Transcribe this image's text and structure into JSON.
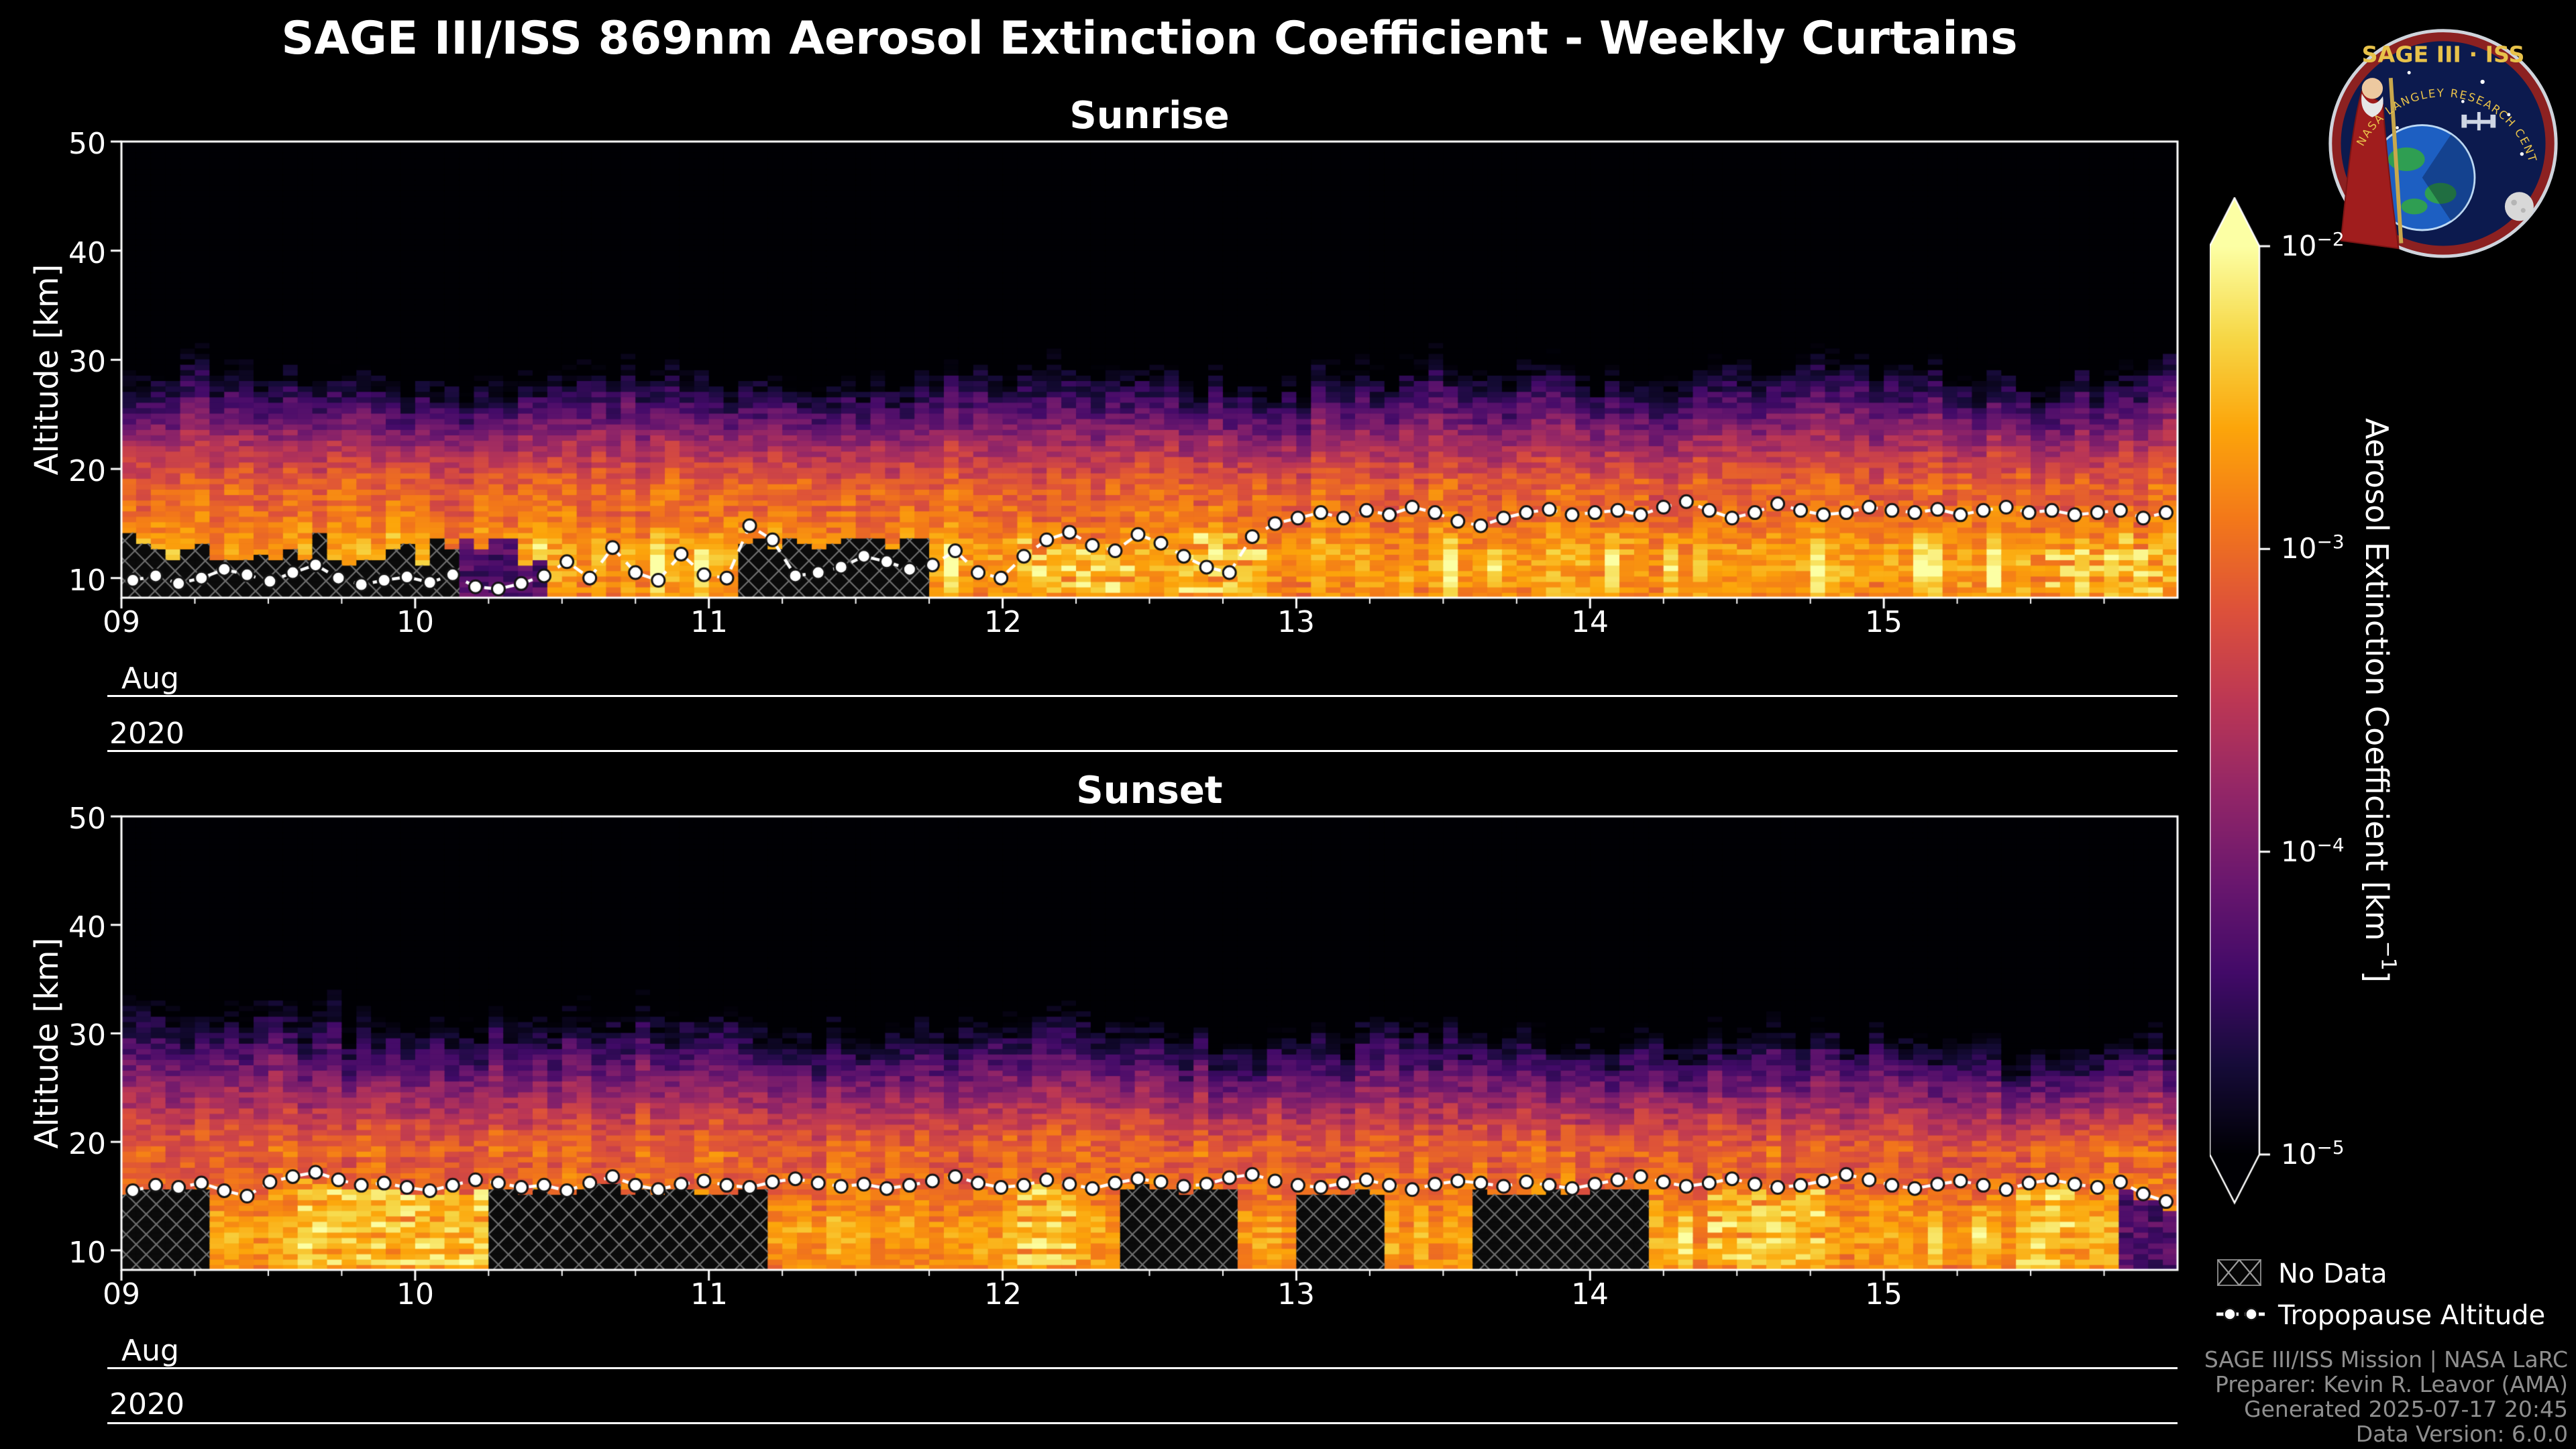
{
  "title": "SAGE III/ISS 869nm Aerosol Extinction Coefficient - Weekly Curtains",
  "logo": {
    "title": "SAGE III · ISS",
    "ring_text": "NASA LANGLEY RESEARCH CENTER"
  },
  "colorbar": {
    "label_pre": "Aerosol Extinction Coefficient [km",
    "label_sup": "−1",
    "label_post": "]",
    "scale": "log",
    "range": [
      1e-05,
      0.01
    ],
    "colormap": "inferno",
    "extend": "both",
    "ticks": [
      {
        "base": "10",
        "sup": "−2",
        "value": 0.01
      },
      {
        "base": "10",
        "sup": "−3",
        "value": 0.001
      },
      {
        "base": "10",
        "sup": "−4",
        "value": 0.0001
      },
      {
        "base": "10",
        "sup": "−5",
        "value": 1e-05
      }
    ]
  },
  "legend": {
    "no_data": "No Data",
    "tropopause": "Tropopause Altitude"
  },
  "footer": {
    "lines": [
      "SAGE III/ISS Mission | NASA LaRC",
      "Preparer: Kevin R. Leavor (AMA)",
      "Generated 2025-07-17 20:45",
      "Data Version: 6.0.0"
    ]
  },
  "chart_data": [
    {
      "id": "sunrise",
      "type": "heatmap",
      "title": "Sunrise",
      "ylabel": "Altitude [km]",
      "x_axis": "Day of August 2020",
      "xlabel_month": "Aug",
      "xlabel_year": "2020",
      "xlim": [
        9,
        16
      ],
      "ylim": [
        8.2,
        50
      ],
      "xticks": [
        9,
        10,
        11,
        12,
        13,
        14,
        15
      ],
      "xticklabels": [
        "09",
        "10",
        "11",
        "12",
        "13",
        "14",
        "15"
      ],
      "yticks": [
        10,
        20,
        30,
        40,
        50
      ],
      "yticklabels": [
        "10",
        "20",
        "30",
        "40",
        "50"
      ],
      "visual_model": {
        "band_top_km": 17.5,
        "haze_top_start_km": 29.5,
        "haze_top_end_km": 30.5,
        "band_log10_ext": -2.9,
        "background_log10_ext": -5.3,
        "nodata_day_ranges": [
          [
            9.0,
            10.45
          ],
          [
            11.15,
            12.8
          ],
          [
            14.35,
            14.6
          ],
          [
            15.15,
            15.75
          ]
        ]
      },
      "tropopause_km": [
        9.8,
        10.2,
        9.5,
        10.0,
        10.8,
        10.3,
        9.7,
        10.5,
        11.2,
        10.0,
        9.4,
        9.8,
        10.1,
        9.6,
        10.3,
        9.2,
        9.0,
        9.5,
        10.2,
        11.5,
        10.0,
        12.8,
        10.5,
        9.8,
        12.2,
        10.3,
        10.0,
        14.8,
        13.5,
        10.2,
        10.5,
        11.0,
        12.0,
        11.5,
        10.8,
        11.2,
        12.5,
        10.5,
        10.0,
        12.0,
        13.5,
        14.2,
        13.0,
        12.5,
        14.0,
        13.2,
        12.0,
        11.0,
        10.5,
        13.8,
        15.0,
        15.5,
        16.0,
        15.5,
        16.2,
        15.8,
        16.5,
        16.0,
        15.2,
        14.8,
        15.5,
        16.0,
        16.3,
        15.8,
        16.0,
        16.2,
        15.8,
        16.5,
        17.0,
        16.2,
        15.5,
        16.0,
        16.8,
        16.2,
        15.8,
        16.0,
        16.5,
        16.2,
        16.0,
        16.3,
        15.8,
        16.2,
        16.5,
        16.0,
        16.2,
        15.8,
        16.0,
        16.2,
        15.5,
        16.0
      ]
    },
    {
      "id": "sunset",
      "type": "heatmap",
      "title": "Sunset",
      "ylabel": "Altitude [km]",
      "x_axis": "Day of August 2020",
      "xlabel_month": "Aug",
      "xlabel_year": "2020",
      "xlim": [
        9,
        16
      ],
      "ylim": [
        8.2,
        50
      ],
      "xticks": [
        9,
        10,
        11,
        12,
        13,
        14,
        15
      ],
      "xticklabels": [
        "09",
        "10",
        "11",
        "12",
        "13",
        "14",
        "15"
      ],
      "yticks": [
        10,
        20,
        30,
        40,
        50
      ],
      "yticklabels": [
        "10",
        "20",
        "30",
        "40",
        "50"
      ],
      "visual_model": {
        "band_top_km": 18.5,
        "haze_top_start_km": 33.5,
        "haze_top_end_km": 30.3,
        "band_log10_ext": -2.9,
        "background_log10_ext": -5.3,
        "nodata_day_ranges": [
          [
            9.0,
            16.0
          ]
        ]
      },
      "tropopause_km": [
        15.5,
        16.0,
        15.8,
        16.2,
        15.5,
        15.0,
        16.3,
        16.8,
        17.2,
        16.5,
        16.0,
        16.2,
        15.8,
        15.5,
        16.0,
        16.5,
        16.2,
        15.8,
        16.0,
        15.5,
        16.2,
        16.8,
        16.0,
        15.6,
        16.1,
        16.4,
        16.0,
        15.8,
        16.3,
        16.6,
        16.2,
        15.9,
        16.1,
        15.7,
        16.0,
        16.4,
        16.8,
        16.2,
        15.8,
        16.0,
        16.5,
        16.1,
        15.7,
        16.2,
        16.6,
        16.3,
        15.9,
        16.1,
        16.7,
        17.0,
        16.4,
        16.0,
        15.8,
        16.2,
        16.5,
        16.0,
        15.6,
        16.1,
        16.4,
        16.2,
        15.9,
        16.3,
        16.0,
        15.7,
        16.1,
        16.5,
        16.8,
        16.3,
        15.9,
        16.2,
        16.6,
        16.1,
        15.8,
        16.0,
        16.4,
        17.0,
        16.5,
        16.0,
        15.7,
        16.1,
        16.4,
        16.0,
        15.6,
        16.2,
        16.5,
        16.1,
        15.8,
        16.3,
        15.2,
        14.5
      ]
    }
  ]
}
